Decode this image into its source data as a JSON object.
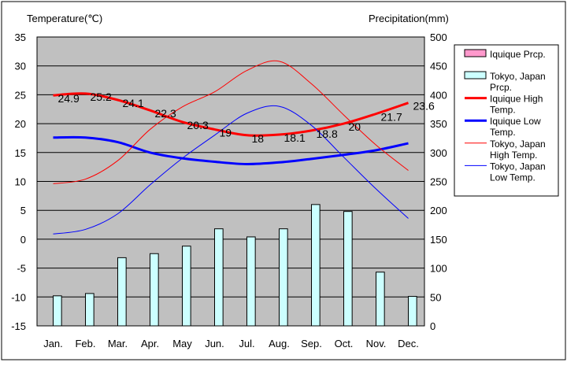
{
  "chart_data": {
    "type": "bar+line",
    "left_axis_title": "Temperature(℃)",
    "right_axis_title": "Precipitation(mm)",
    "categories": [
      "Jan.",
      "Feb.",
      "Mar.",
      "Apr.",
      "May",
      "Jun.",
      "Jul.",
      "Aug.",
      "Sep.",
      "Oct.",
      "Nov.",
      "Dec."
    ],
    "ylim_temperature": [
      -15,
      35
    ],
    "ylim_precipitation": [
      0,
      500
    ],
    "temperature_ticks": [
      "35",
      "30",
      "25",
      "20",
      "15",
      "10",
      "5",
      "0",
      "-5",
      "-10",
      "-15"
    ],
    "precipitation_ticks": [
      "500",
      "450",
      "400",
      "350",
      "300",
      "250",
      "200",
      "150",
      "100",
      "50",
      "0"
    ],
    "plot_background": "#c0c0c0",
    "grid": true,
    "legend_position": "right",
    "bars": [
      {
        "name": "Iquique Prcp.",
        "color": "#ff99cc",
        "values": [
          0,
          0,
          0,
          0,
          0,
          0,
          0,
          0,
          0,
          0,
          0,
          0
        ]
      },
      {
        "name": "Tokyo, Japan Prcp.",
        "color": "#ccffff",
        "values": [
          52,
          56,
          118,
          125,
          138,
          168,
          154,
          168,
          210,
          198,
          93,
          51
        ]
      }
    ],
    "lines": [
      {
        "name": "Iquique High Temp.",
        "color": "#ff0000",
        "weight": "thick",
        "values": [
          24.9,
          25.2,
          24.1,
          22.3,
          20.3,
          19,
          18,
          18.1,
          18.8,
          20,
          21.7,
          23.6
        ],
        "labels": [
          "24.9",
          "25.2",
          "24.1",
          "22.3",
          "20.3",
          "19",
          "18",
          "18.1",
          "18.8",
          "20",
          "21.7",
          "23.6"
        ]
      },
      {
        "name": "Iquique Low Temp.",
        "color": "#0000ff",
        "weight": "thick",
        "values": [
          17.6,
          17.6,
          16.8,
          15.0,
          14.0,
          13.4,
          13.0,
          13.3,
          13.9,
          14.6,
          15.4,
          16.6
        ]
      },
      {
        "name": "Tokyo, Japan High Temp.",
        "color": "#ff0000",
        "weight": "thin",
        "values": [
          9.6,
          10.4,
          13.6,
          19.0,
          22.9,
          25.5,
          29.2,
          30.8,
          26.9,
          21.5,
          16.3,
          11.9
        ]
      },
      {
        "name": "Tokyo, Japan Low Temp.",
        "color": "#0000ff",
        "weight": "thin",
        "values": [
          0.9,
          1.7,
          4.4,
          9.4,
          14.0,
          18.0,
          21.8,
          23.0,
          19.7,
          14.2,
          8.7,
          3.6
        ]
      }
    ],
    "legend": [
      {
        "lines": [
          "Iquique Prcp."
        ],
        "kind": "bar",
        "color": "#ff99cc"
      },
      {
        "lines": [
          "Tokyo, Japan",
          "Prcp."
        ],
        "kind": "bar",
        "color": "#ccffff"
      },
      {
        "lines": [
          "Iquique High",
          "Temp."
        ],
        "kind": "line",
        "color": "#ff0000",
        "weight": "thick"
      },
      {
        "lines": [
          "Iquique Low",
          "Temp."
        ],
        "kind": "line",
        "color": "#0000ff",
        "weight": "thick"
      },
      {
        "lines": [
          "Tokyo, Japan",
          "High Temp."
        ],
        "kind": "line",
        "color": "#ff0000",
        "weight": "thin"
      },
      {
        "lines": [
          "Tokyo, Japan",
          "Low Temp."
        ],
        "kind": "line",
        "color": "#0000ff",
        "weight": "thin"
      }
    ]
  }
}
